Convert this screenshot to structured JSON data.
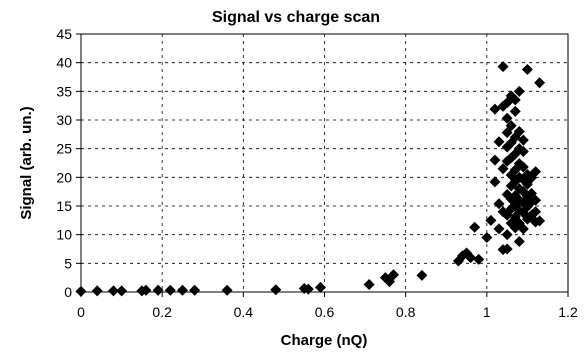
{
  "chart_data": {
    "type": "scatter",
    "title": "Signal vs charge scan",
    "xlabel": "Charge (nQ)",
    "ylabel": "Signal (arb. un.)",
    "xlim": [
      0,
      1.2
    ],
    "ylim": [
      0,
      45
    ],
    "x_ticks": [
      "0",
      "0.2",
      "0.4",
      "0.6",
      "0.8",
      "1",
      "1.2"
    ],
    "y_ticks": [
      "0",
      "5",
      "10",
      "15",
      "20",
      "25",
      "30",
      "35",
      "40",
      "45"
    ],
    "x_tick_values": [
      0,
      0.2,
      0.4,
      0.6,
      0.8,
      1.0,
      1.2
    ],
    "y_tick_values": [
      0,
      5,
      10,
      15,
      20,
      25,
      30,
      35,
      40,
      45
    ],
    "grid": true,
    "marker": "diamond",
    "marker_color": "#000000",
    "points": [
      [
        0.0,
        0.1
      ],
      [
        0.04,
        0.2
      ],
      [
        0.08,
        0.2
      ],
      [
        0.1,
        0.2
      ],
      [
        0.15,
        0.2
      ],
      [
        0.16,
        0.3
      ],
      [
        0.19,
        0.3
      ],
      [
        0.22,
        0.3
      ],
      [
        0.25,
        0.3
      ],
      [
        0.28,
        0.3
      ],
      [
        0.36,
        0.3
      ],
      [
        0.48,
        0.4
      ],
      [
        0.55,
        0.6
      ],
      [
        0.56,
        0.5
      ],
      [
        0.59,
        0.8
      ],
      [
        0.71,
        1.3
      ],
      [
        0.75,
        2.5
      ],
      [
        0.76,
        1.8
      ],
      [
        0.77,
        3.0
      ],
      [
        0.84,
        2.9
      ],
      [
        0.93,
        5.4
      ],
      [
        0.94,
        6.3
      ],
      [
        0.95,
        6.8
      ],
      [
        0.96,
        6.0
      ],
      [
        0.97,
        11.3
      ],
      [
        0.98,
        5.7
      ],
      [
        1.0,
        9.5
      ],
      [
        1.01,
        12.5
      ],
      [
        1.02,
        19.2
      ],
      [
        1.02,
        23.0
      ],
      [
        1.02,
        31.9
      ],
      [
        1.03,
        11.0
      ],
      [
        1.03,
        26.2
      ],
      [
        1.03,
        15.4
      ],
      [
        1.04,
        7.4
      ],
      [
        1.04,
        14.0
      ],
      [
        1.04,
        21.5
      ],
      [
        1.04,
        32.4
      ],
      [
        1.04,
        39.3
      ],
      [
        1.05,
        7.5
      ],
      [
        1.05,
        10.0
      ],
      [
        1.05,
        13.4
      ],
      [
        1.05,
        17.0
      ],
      [
        1.05,
        22.8
      ],
      [
        1.05,
        25.3
      ],
      [
        1.05,
        27.8
      ],
      [
        1.05,
        30.3
      ],
      [
        1.05,
        33.0
      ],
      [
        1.06,
        12.0
      ],
      [
        1.06,
        14.5
      ],
      [
        1.06,
        16.2
      ],
      [
        1.06,
        18.5
      ],
      [
        1.06,
        20.4
      ],
      [
        1.06,
        23.4
      ],
      [
        1.06,
        26.0
      ],
      [
        1.06,
        29.0
      ],
      [
        1.06,
        34.2
      ],
      [
        1.07,
        11.2
      ],
      [
        1.07,
        13.1
      ],
      [
        1.07,
        15.0
      ],
      [
        1.07,
        16.8
      ],
      [
        1.07,
        19.3
      ],
      [
        1.07,
        21.3
      ],
      [
        1.07,
        24.1
      ],
      [
        1.07,
        27.0
      ],
      [
        1.07,
        31.5
      ],
      [
        1.07,
        33.5
      ],
      [
        1.08,
        8.8
      ],
      [
        1.08,
        12.0
      ],
      [
        1.08,
        14.2
      ],
      [
        1.08,
        16.0
      ],
      [
        1.08,
        18.0
      ],
      [
        1.08,
        20.0
      ],
      [
        1.08,
        22.4
      ],
      [
        1.08,
        25.0
      ],
      [
        1.08,
        28.0
      ],
      [
        1.08,
        35.0
      ],
      [
        1.09,
        11.0
      ],
      [
        1.09,
        13.8
      ],
      [
        1.09,
        15.5
      ],
      [
        1.09,
        17.5
      ],
      [
        1.09,
        19.6
      ],
      [
        1.09,
        21.8
      ],
      [
        1.09,
        24.5
      ],
      [
        1.09,
        26.5
      ],
      [
        1.1,
        12.7
      ],
      [
        1.1,
        14.9
      ],
      [
        1.1,
        16.6
      ],
      [
        1.1,
        18.8
      ],
      [
        1.1,
        20.5
      ],
      [
        1.1,
        38.8
      ],
      [
        1.11,
        13.4
      ],
      [
        1.11,
        15.7
      ],
      [
        1.11,
        17.2
      ],
      [
        1.11,
        19.9
      ],
      [
        1.12,
        12.2
      ],
      [
        1.12,
        14.0
      ],
      [
        1.12,
        16.0
      ],
      [
        1.12,
        21.0
      ],
      [
        1.13,
        12.4
      ],
      [
        1.13,
        36.5
      ]
    ]
  }
}
